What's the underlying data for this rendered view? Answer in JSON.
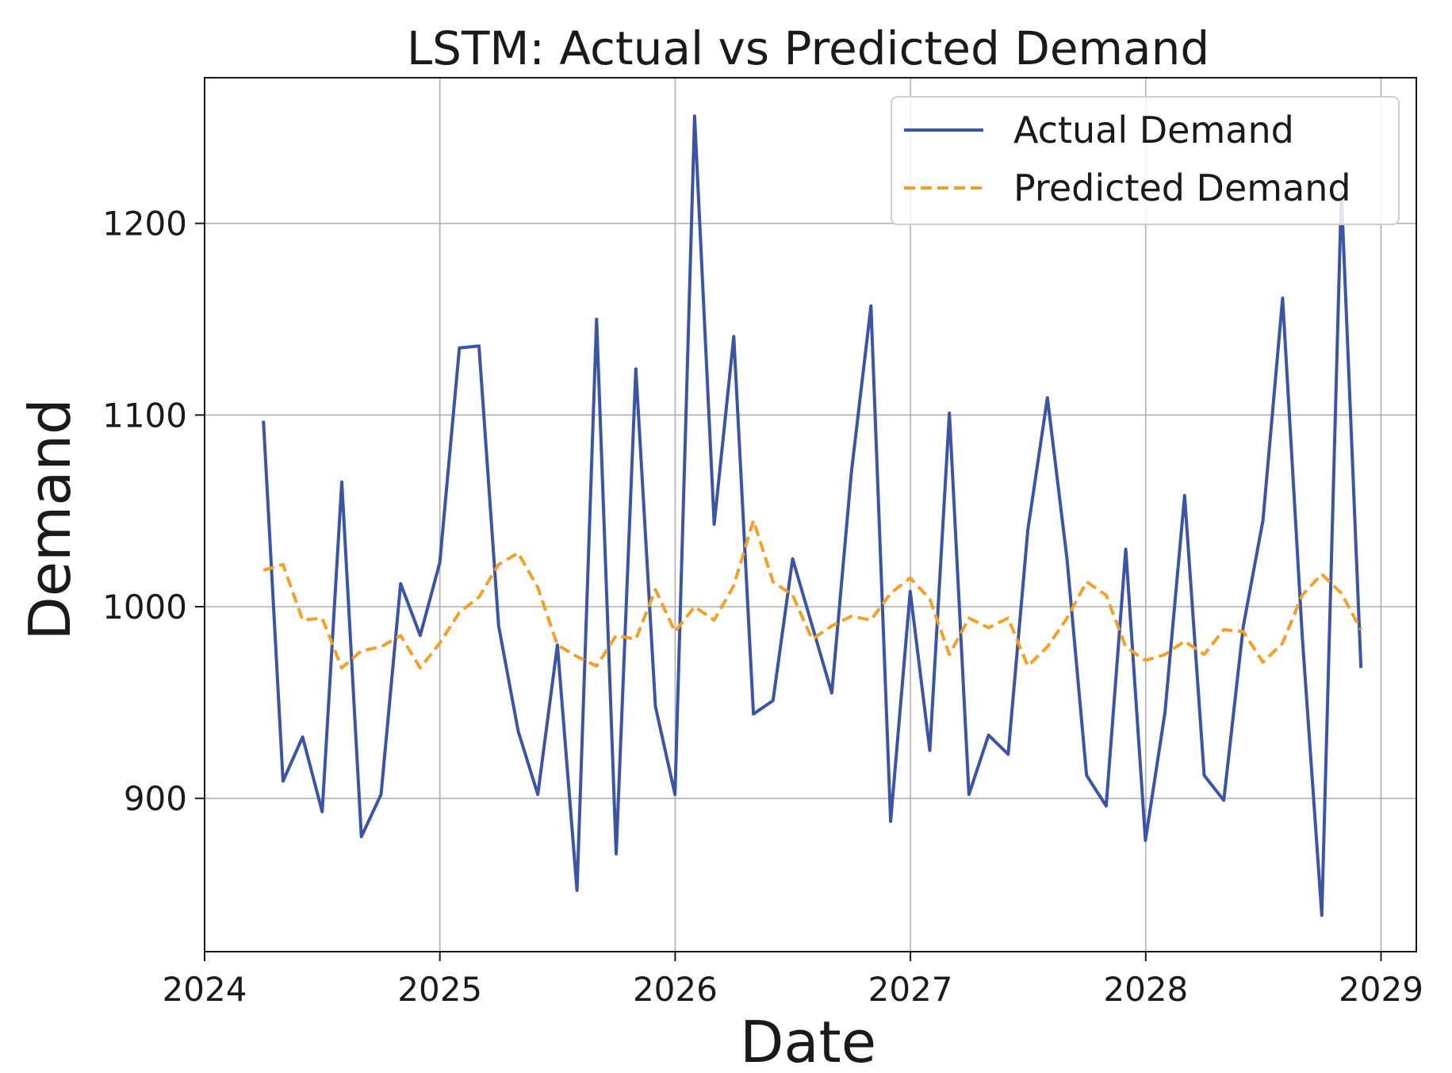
{
  "chart_data": {
    "type": "line",
    "title": "LSTM: Actual vs Predicted Demand",
    "xlabel": "Date",
    "ylabel": "Demand",
    "xlim": [
      2024.0,
      2029.15
    ],
    "ylim": [
      820,
      1276
    ],
    "x_ticks": [
      2024,
      2025,
      2026,
      2027,
      2028,
      2029
    ],
    "x_tick_labels": [
      "2024",
      "2025",
      "2026",
      "2027",
      "2028",
      "2029"
    ],
    "y_ticks": [
      900,
      1000,
      1100,
      1200
    ],
    "y_tick_labels": [
      "900",
      "1000",
      "1100",
      "1200"
    ],
    "grid": true,
    "legend_position": "top-right",
    "series": [
      {
        "name": "Actual Demand",
        "color": "#3a55a8",
        "style": "solid",
        "x_start": 2024.25,
        "x_step": 0.0833,
        "values": [
          1097,
          909,
          932,
          893,
          1065,
          880,
          902,
          1012,
          985,
          1023,
          1135,
          1136,
          990,
          935,
          902,
          980,
          852,
          1150,
          871,
          1124,
          948,
          902,
          1256,
          1043,
          1141,
          944,
          951,
          1025,
          990,
          955,
          1070,
          1157,
          888,
          1008,
          925,
          1101,
          902,
          933,
          923,
          1040,
          1109,
          1025,
          912,
          896,
          1030,
          878,
          945,
          1058,
          912,
          899,
          990,
          1045,
          1161,
          985,
          839,
          1216,
          968
        ]
      },
      {
        "name": "Predicted Demand",
        "color": "#f5a023",
        "style": "dashed",
        "x_start": 2024.25,
        "x_step": 0.0833,
        "values": [
          1019,
          1022,
          993,
          994,
          968,
          977,
          979,
          985,
          968,
          981,
          997,
          1005,
          1022,
          1028,
          1010,
          980,
          974,
          969,
          985,
          983,
          1009,
          987,
          1000,
          993,
          1011,
          1045,
          1013,
          1006,
          983,
          990,
          995,
          993,
          1007,
          1015,
          1004,
          975,
          994,
          989,
          994,
          969,
          979,
          994,
          1013,
          1006,
          979,
          972,
          975,
          982,
          975,
          988,
          987,
          971,
          981,
          1006,
          1017,
          1007,
          988
        ]
      }
    ]
  }
}
